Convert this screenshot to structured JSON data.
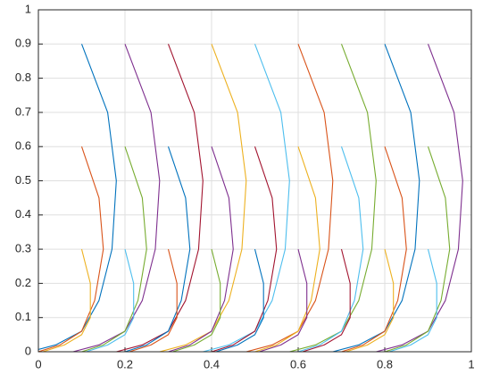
{
  "chart_data": {
    "type": "line",
    "xlim": [
      0,
      1
    ],
    "ylim": [
      0,
      1
    ],
    "xticks": [
      0,
      0.2,
      0.4,
      0.6,
      0.8,
      1
    ],
    "yticks": [
      0,
      0.1,
      0.2,
      0.3,
      0.4,
      0.5,
      0.6,
      0.7,
      0.8,
      0.9,
      1
    ],
    "grid": true,
    "series": [
      {
        "color": "#0072BD",
        "x": [
          0.1,
          0.16,
          0.18,
          0.17,
          0.14,
          0.1,
          0.04,
          -0.02
        ],
        "y": [
          0.9,
          0.7,
          0.5,
          0.3,
          0.15,
          0.06,
          0.02,
          0
        ]
      },
      {
        "color": "#D95319",
        "x": [
          0.1,
          0.14,
          0.15,
          0.13,
          0.1,
          0.05,
          0
        ],
        "y": [
          0.6,
          0.45,
          0.3,
          0.15,
          0.06,
          0.02,
          0
        ]
      },
      {
        "color": "#EDB120",
        "x": [
          0.1,
          0.12,
          0.12,
          0.1,
          0.06,
          0.01
        ],
        "y": [
          0.3,
          0.2,
          0.1,
          0.05,
          0.02,
          0
        ]
      },
      {
        "color": "#7E2F8E",
        "x": [
          0.2,
          0.26,
          0.28,
          0.27,
          0.24,
          0.2,
          0.14,
          0.08
        ],
        "y": [
          0.9,
          0.7,
          0.5,
          0.3,
          0.15,
          0.06,
          0.02,
          0
        ]
      },
      {
        "color": "#77AC30",
        "x": [
          0.2,
          0.24,
          0.25,
          0.23,
          0.2,
          0.15,
          0.1
        ],
        "y": [
          0.6,
          0.45,
          0.3,
          0.15,
          0.06,
          0.02,
          0
        ]
      },
      {
        "color": "#4DBEEE",
        "x": [
          0.2,
          0.22,
          0.22,
          0.2,
          0.16,
          0.11
        ],
        "y": [
          0.3,
          0.2,
          0.1,
          0.05,
          0.02,
          0
        ]
      },
      {
        "color": "#A2142F",
        "x": [
          0.3,
          0.36,
          0.38,
          0.37,
          0.34,
          0.3,
          0.24,
          0.18
        ],
        "y": [
          0.9,
          0.7,
          0.5,
          0.3,
          0.15,
          0.06,
          0.02,
          0
        ]
      },
      {
        "color": "#0072BD",
        "x": [
          0.3,
          0.34,
          0.35,
          0.33,
          0.3,
          0.25,
          0.2
        ],
        "y": [
          0.6,
          0.45,
          0.3,
          0.15,
          0.06,
          0.02,
          0
        ]
      },
      {
        "color": "#D95319",
        "x": [
          0.3,
          0.32,
          0.32,
          0.3,
          0.26,
          0.21
        ],
        "y": [
          0.3,
          0.2,
          0.1,
          0.05,
          0.02,
          0
        ]
      },
      {
        "color": "#EDB120",
        "x": [
          0.4,
          0.46,
          0.48,
          0.47,
          0.44,
          0.4,
          0.34,
          0.28
        ],
        "y": [
          0.9,
          0.7,
          0.5,
          0.3,
          0.15,
          0.06,
          0.02,
          0
        ]
      },
      {
        "color": "#7E2F8E",
        "x": [
          0.4,
          0.44,
          0.45,
          0.43,
          0.4,
          0.35,
          0.3
        ],
        "y": [
          0.6,
          0.45,
          0.3,
          0.15,
          0.06,
          0.02,
          0
        ]
      },
      {
        "color": "#77AC30",
        "x": [
          0.4,
          0.42,
          0.42,
          0.4,
          0.36,
          0.31
        ],
        "y": [
          0.3,
          0.2,
          0.1,
          0.05,
          0.02,
          0
        ]
      },
      {
        "color": "#4DBEEE",
        "x": [
          0.5,
          0.56,
          0.58,
          0.57,
          0.54,
          0.5,
          0.44,
          0.38
        ],
        "y": [
          0.9,
          0.7,
          0.5,
          0.3,
          0.15,
          0.06,
          0.02,
          0
        ]
      },
      {
        "color": "#A2142F",
        "x": [
          0.5,
          0.54,
          0.55,
          0.53,
          0.5,
          0.45,
          0.4
        ],
        "y": [
          0.6,
          0.45,
          0.3,
          0.15,
          0.06,
          0.02,
          0
        ]
      },
      {
        "color": "#0072BD",
        "x": [
          0.5,
          0.52,
          0.52,
          0.5,
          0.46,
          0.41
        ],
        "y": [
          0.3,
          0.2,
          0.1,
          0.05,
          0.02,
          0
        ]
      },
      {
        "color": "#D95319",
        "x": [
          0.6,
          0.66,
          0.68,
          0.67,
          0.64,
          0.6,
          0.54,
          0.48
        ],
        "y": [
          0.9,
          0.7,
          0.5,
          0.3,
          0.15,
          0.06,
          0.02,
          0
        ]
      },
      {
        "color": "#EDB120",
        "x": [
          0.6,
          0.64,
          0.65,
          0.63,
          0.6,
          0.55,
          0.5
        ],
        "y": [
          0.6,
          0.45,
          0.3,
          0.15,
          0.06,
          0.02,
          0
        ]
      },
      {
        "color": "#7E2F8E",
        "x": [
          0.6,
          0.62,
          0.62,
          0.6,
          0.56,
          0.51
        ],
        "y": [
          0.3,
          0.2,
          0.1,
          0.05,
          0.02,
          0
        ]
      },
      {
        "color": "#77AC30",
        "x": [
          0.7,
          0.76,
          0.78,
          0.77,
          0.74,
          0.7,
          0.64,
          0.58
        ],
        "y": [
          0.9,
          0.7,
          0.5,
          0.3,
          0.15,
          0.06,
          0.02,
          0
        ]
      },
      {
        "color": "#4DBEEE",
        "x": [
          0.7,
          0.74,
          0.75,
          0.73,
          0.7,
          0.65,
          0.6
        ],
        "y": [
          0.6,
          0.45,
          0.3,
          0.15,
          0.06,
          0.02,
          0
        ]
      },
      {
        "color": "#A2142F",
        "x": [
          0.7,
          0.72,
          0.72,
          0.7,
          0.66,
          0.61
        ],
        "y": [
          0.3,
          0.2,
          0.1,
          0.05,
          0.02,
          0
        ]
      },
      {
        "color": "#0072BD",
        "x": [
          0.8,
          0.86,
          0.88,
          0.87,
          0.84,
          0.8,
          0.74,
          0.68
        ],
        "y": [
          0.9,
          0.7,
          0.5,
          0.3,
          0.15,
          0.06,
          0.02,
          0
        ]
      },
      {
        "color": "#D95319",
        "x": [
          0.8,
          0.84,
          0.85,
          0.83,
          0.8,
          0.75,
          0.7
        ],
        "y": [
          0.6,
          0.45,
          0.3,
          0.15,
          0.06,
          0.02,
          0
        ]
      },
      {
        "color": "#EDB120",
        "x": [
          0.8,
          0.82,
          0.82,
          0.8,
          0.76,
          0.71
        ],
        "y": [
          0.3,
          0.2,
          0.1,
          0.05,
          0.02,
          0
        ]
      },
      {
        "color": "#7E2F8E",
        "x": [
          0.9,
          0.96,
          0.98,
          0.97,
          0.94,
          0.9,
          0.84,
          0.78
        ],
        "y": [
          0.9,
          0.7,
          0.5,
          0.3,
          0.15,
          0.06,
          0.02,
          0
        ]
      },
      {
        "color": "#77AC30",
        "x": [
          0.9,
          0.94,
          0.95,
          0.93,
          0.9,
          0.85,
          0.8
        ],
        "y": [
          0.6,
          0.45,
          0.3,
          0.15,
          0.06,
          0.02,
          0
        ]
      },
      {
        "color": "#4DBEEE",
        "x": [
          0.9,
          0.92,
          0.92,
          0.9,
          0.86,
          0.81
        ],
        "y": [
          0.3,
          0.2,
          0.1,
          0.05,
          0.02,
          0
        ]
      }
    ]
  }
}
